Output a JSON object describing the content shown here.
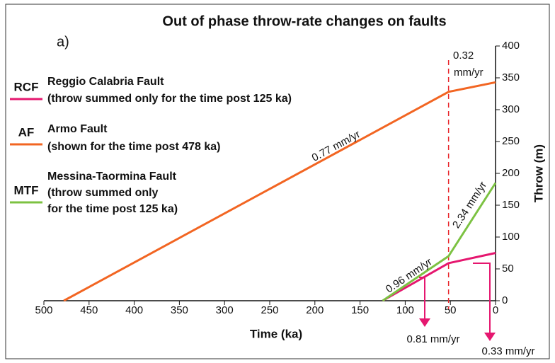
{
  "chart_data": {
    "type": "line",
    "title": "Out of phase throw-rate changes on faults",
    "panel_label": "a)",
    "x_label": "Time (ka)",
    "y_label": "Throw (m)",
    "xlim": [
      500,
      0
    ],
    "xticks": [
      500,
      450,
      400,
      350,
      300,
      250,
      200,
      150,
      100,
      50,
      0
    ],
    "ylim": [
      0,
      400
    ],
    "yticks": [
      0,
      50,
      100,
      150,
      200,
      250,
      300,
      350,
      400
    ],
    "reference_line_x": 52,
    "reference_line_color": "#e8262b",
    "series": [
      {
        "name": "RCF",
        "label_lines": [
          "Reggio Calabria Fault",
          "(throw summed only for the time post 125 ka)"
        ],
        "color": "#e5176f",
        "x": [
          125,
          52,
          0
        ],
        "values": [
          0,
          59,
          75
        ]
      },
      {
        "name": "AF",
        "label_lines": [
          "Armo Fault",
          "(shown for the time post 478 ka)"
        ],
        "color": "#f26522",
        "x": [
          478,
          52,
          0
        ],
        "values": [
          0,
          328,
          343
        ]
      },
      {
        "name": "MTF",
        "label_lines": [
          "Messina-Taormina Fault",
          "(throw summed only",
          "for the time post 125 ka)"
        ],
        "color": "#7cc242",
        "x": [
          125,
          52,
          0
        ],
        "values": [
          0,
          70,
          185
        ]
      }
    ],
    "annotations": [
      {
        "text": "0.77 mm/yr",
        "color": "#f26522"
      },
      {
        "text": "0.32",
        "color": "#f26522"
      },
      {
        "text": "mm/yr",
        "color": "#f26522"
      },
      {
        "text": "0.96 mm/yr",
        "color": "#7cc242"
      },
      {
        "text": "2.34 mm/yr",
        "color": "#7cc242"
      },
      {
        "text": "0.81 mm/yr",
        "color": "#e5176f"
      },
      {
        "text": "0.33 mm/yr",
        "color": "#e5176f"
      }
    ]
  }
}
